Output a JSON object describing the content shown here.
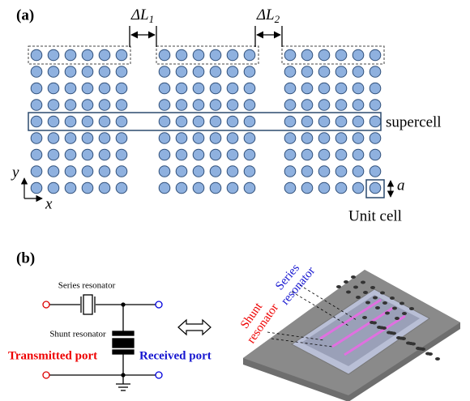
{
  "panel_a": {
    "label": "(a)",
    "delta_l1": {
      "symbol": "ΔL",
      "subscript": "1"
    },
    "delta_l2": {
      "symbol": "ΔL",
      "subscript": "2"
    },
    "supercell": "supercell",
    "axis_y": "y",
    "axis_x": "x",
    "lattice_constant": "a",
    "unit_cell": "Unit cell"
  },
  "panel_b": {
    "label": "(b)",
    "series_resonator": "Series resonator",
    "shunt_resonator": "Shunt resonator",
    "transmitted_port": "Transmitted port",
    "received_port": "Received port",
    "device_shunt_label": [
      "Shunt",
      "resonator"
    ],
    "device_series_label": [
      "Series",
      "resonator"
    ]
  }
}
